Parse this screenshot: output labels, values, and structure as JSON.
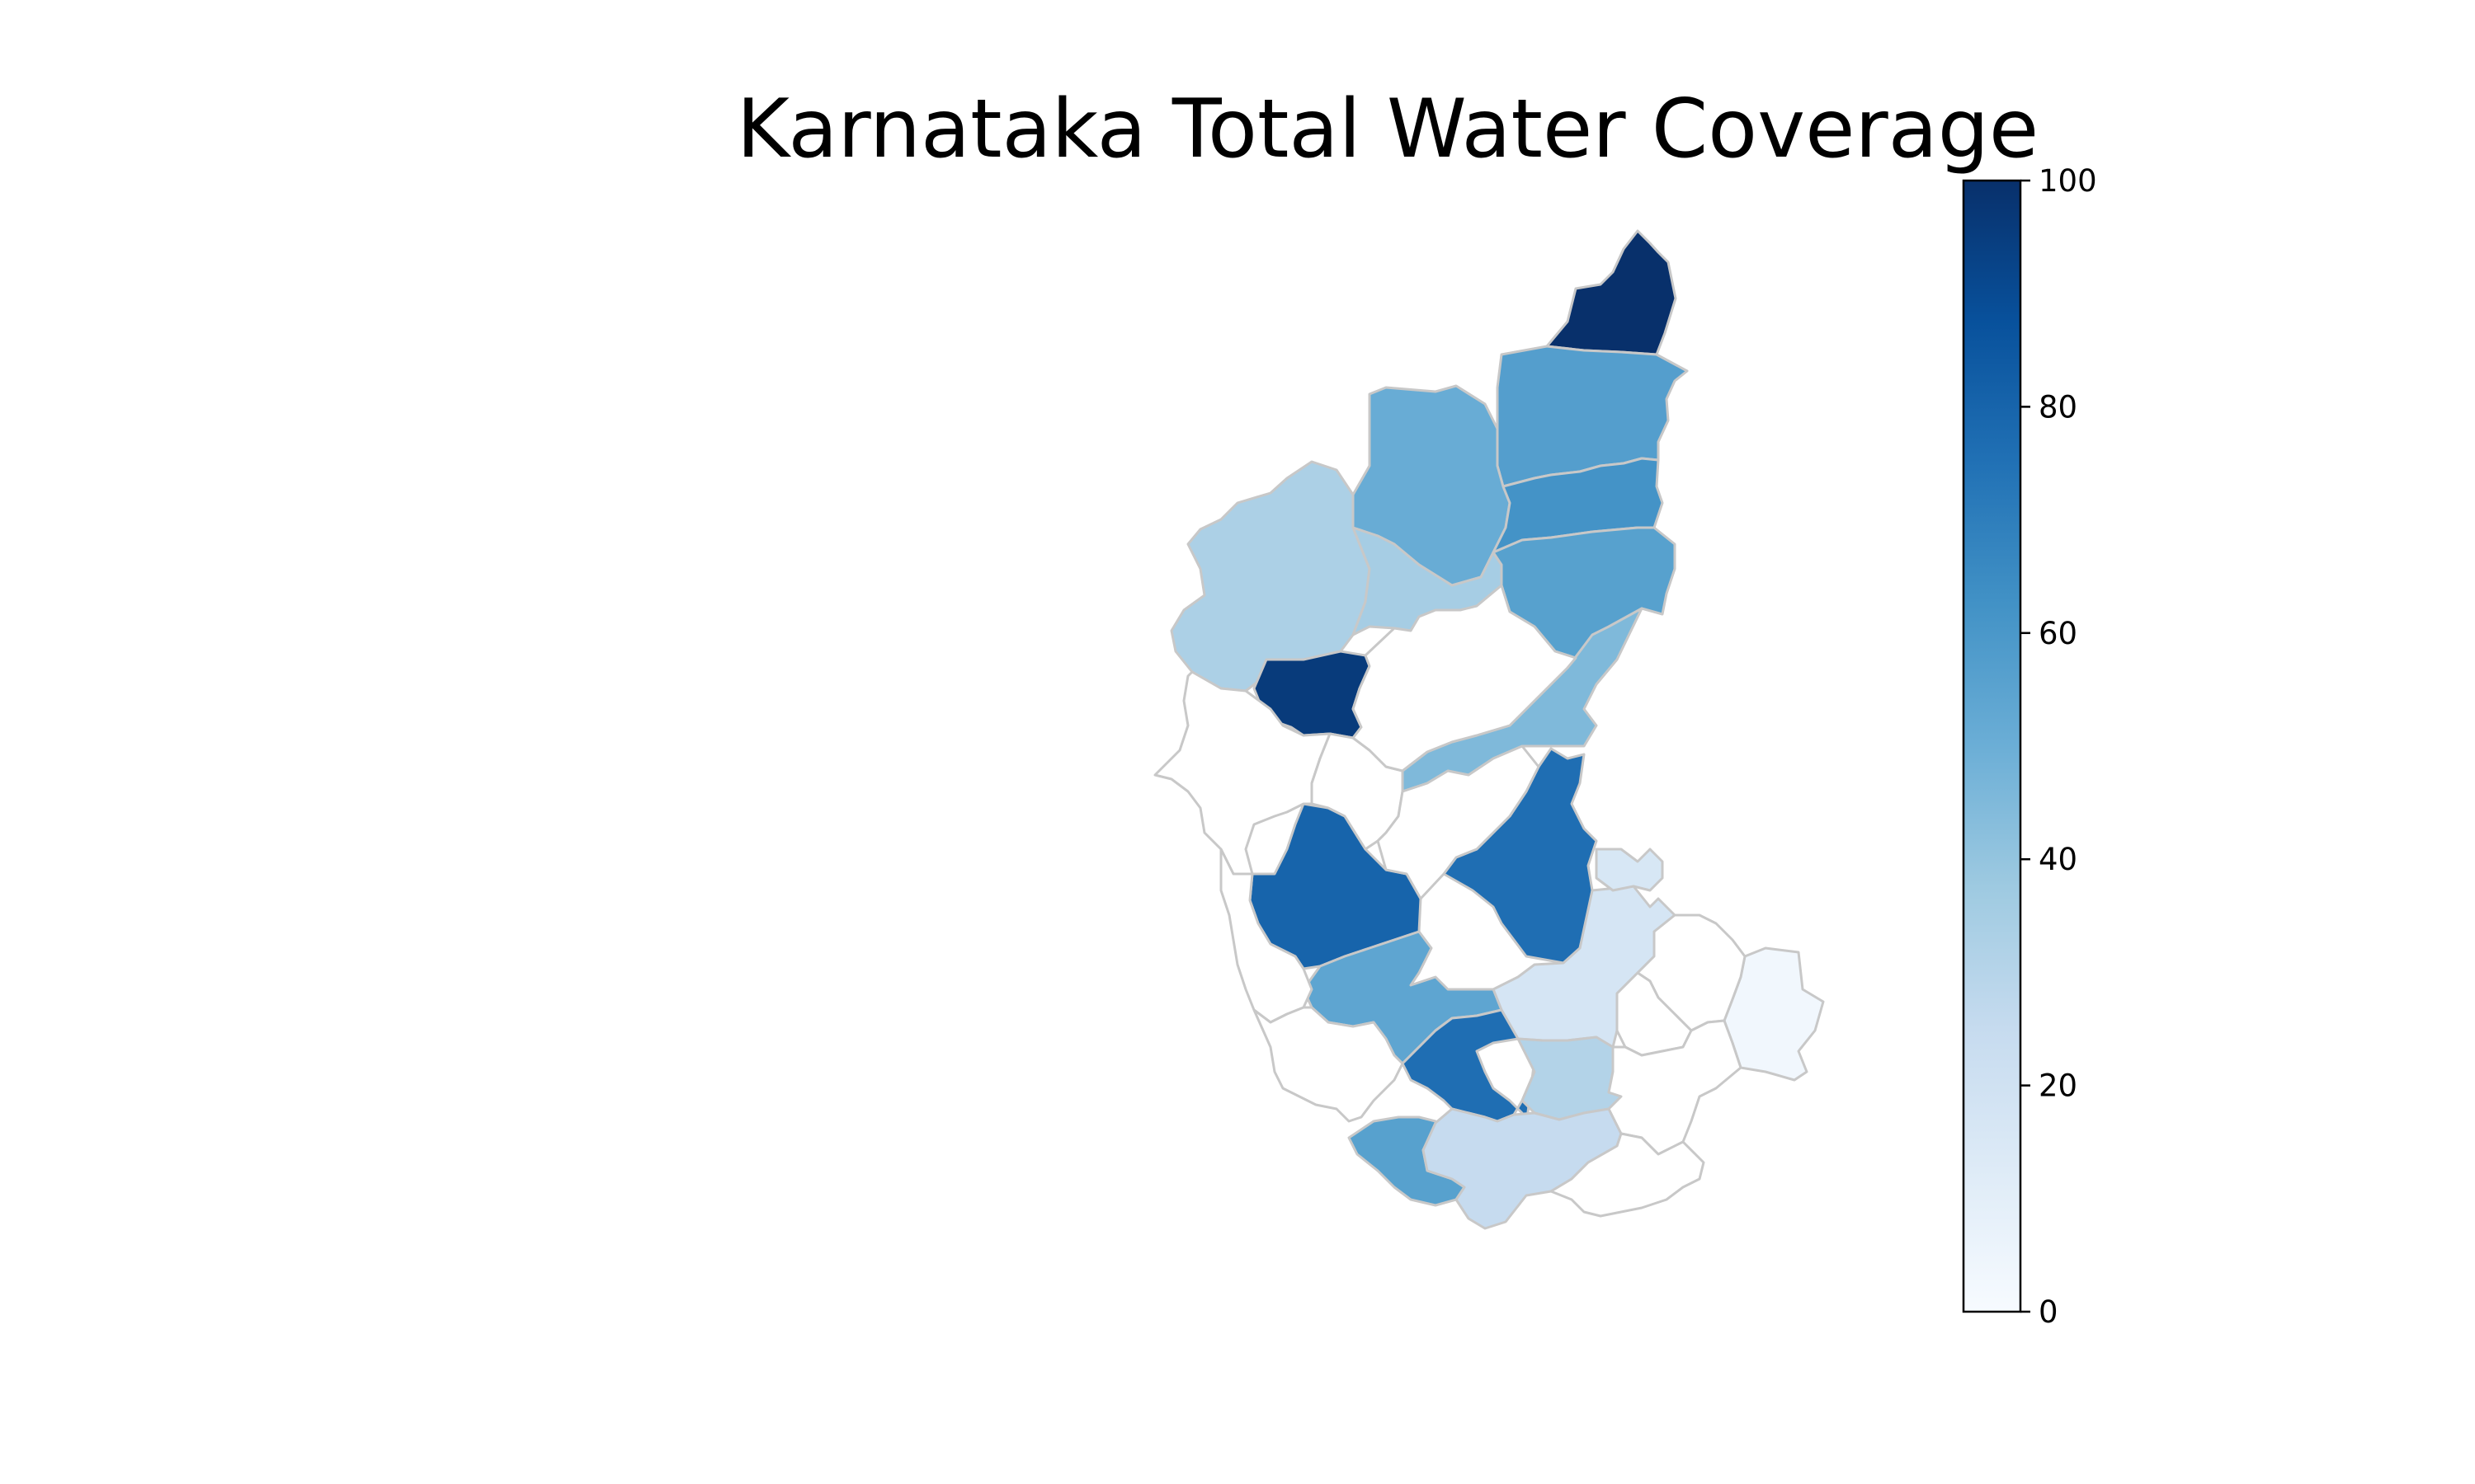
{
  "chart_data": {
    "type": "choropleth",
    "title": "Karnataka Total Water Coverage",
    "colormap": "Blues",
    "colorbar": {
      "min": 0,
      "max": 100,
      "ticks": [
        "0",
        "20",
        "40",
        "60",
        "80",
        "100"
      ],
      "stops": [
        "#f7fbff",
        "#deebf7",
        "#c6dbef",
        "#9ecae1",
        "#6baed6",
        "#4292c6",
        "#2171b5",
        "#08519c",
        "#08306b"
      ]
    },
    "districts": [
      {
        "value": 100
      },
      {
        "value": 57
      },
      {
        "value": 51
      },
      {
        "value": 62
      },
      {
        "value": 33
      },
      {
        "value": 35
      },
      {
        "value": 56
      },
      {
        "value": 96
      },
      {
        "value": 45
      },
      {
        "value": 80
      },
      {
        "value": 76
      },
      {
        "value": 17
      },
      {
        "value": 54
      },
      {
        "value": 16
      },
      {
        "value": 3
      },
      {
        "value": 76
      },
      {
        "value": 31
      },
      {
        "value": 56
      },
      {
        "value": 25
      },
      {
        "value": null
      },
      {
        "value": null
      },
      {
        "value": null
      },
      {
        "value": null
      },
      {
        "value": null
      },
      {
        "value": null
      },
      {
        "value": null
      },
      {
        "value": null
      },
      {
        "value": null
      },
      {
        "value": null
      }
    ]
  }
}
